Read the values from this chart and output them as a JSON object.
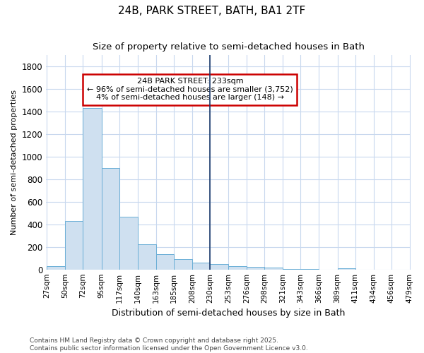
{
  "title": "24B, PARK STREET, BATH, BA1 2TF",
  "subtitle": "Size of property relative to semi-detached houses in Bath",
  "xlabel": "Distribution of semi-detached houses by size in Bath",
  "ylabel": "Number of semi-detached properties",
  "bin_edges": [
    27,
    50,
    72,
    95,
    117,
    140,
    163,
    185,
    208,
    230,
    253,
    276,
    298,
    321,
    343,
    366,
    389,
    411,
    434,
    456,
    479
  ],
  "bar_heights": [
    30,
    430,
    1430,
    900,
    470,
    225,
    135,
    95,
    60,
    45,
    30,
    20,
    15,
    5,
    3,
    0,
    10,
    0,
    0,
    0
  ],
  "bar_color": "#cfe0f0",
  "bar_edge_color": "#6aaed6",
  "property_line_x": 230,
  "property_line_color": "#1a3a6b",
  "annotation_title": "24B PARK STREET: 233sqm",
  "annotation_line1": "← 96% of semi-detached houses are smaller (3,752)",
  "annotation_line2": "4% of semi-detached houses are larger (148) →",
  "annotation_box_edgecolor": "#cc0000",
  "annotation_box_facecolor": "#ffffff",
  "ylim": [
    0,
    1900
  ],
  "yticks": [
    0,
    200,
    400,
    600,
    800,
    1000,
    1200,
    1400,
    1600,
    1800
  ],
  "background_color": "#ffffff",
  "grid_color": "#c8d8ee",
  "footnote1": "Contains HM Land Registry data © Crown copyright and database right 2025.",
  "footnote2": "Contains public sector information licensed under the Open Government Licence v3.0."
}
